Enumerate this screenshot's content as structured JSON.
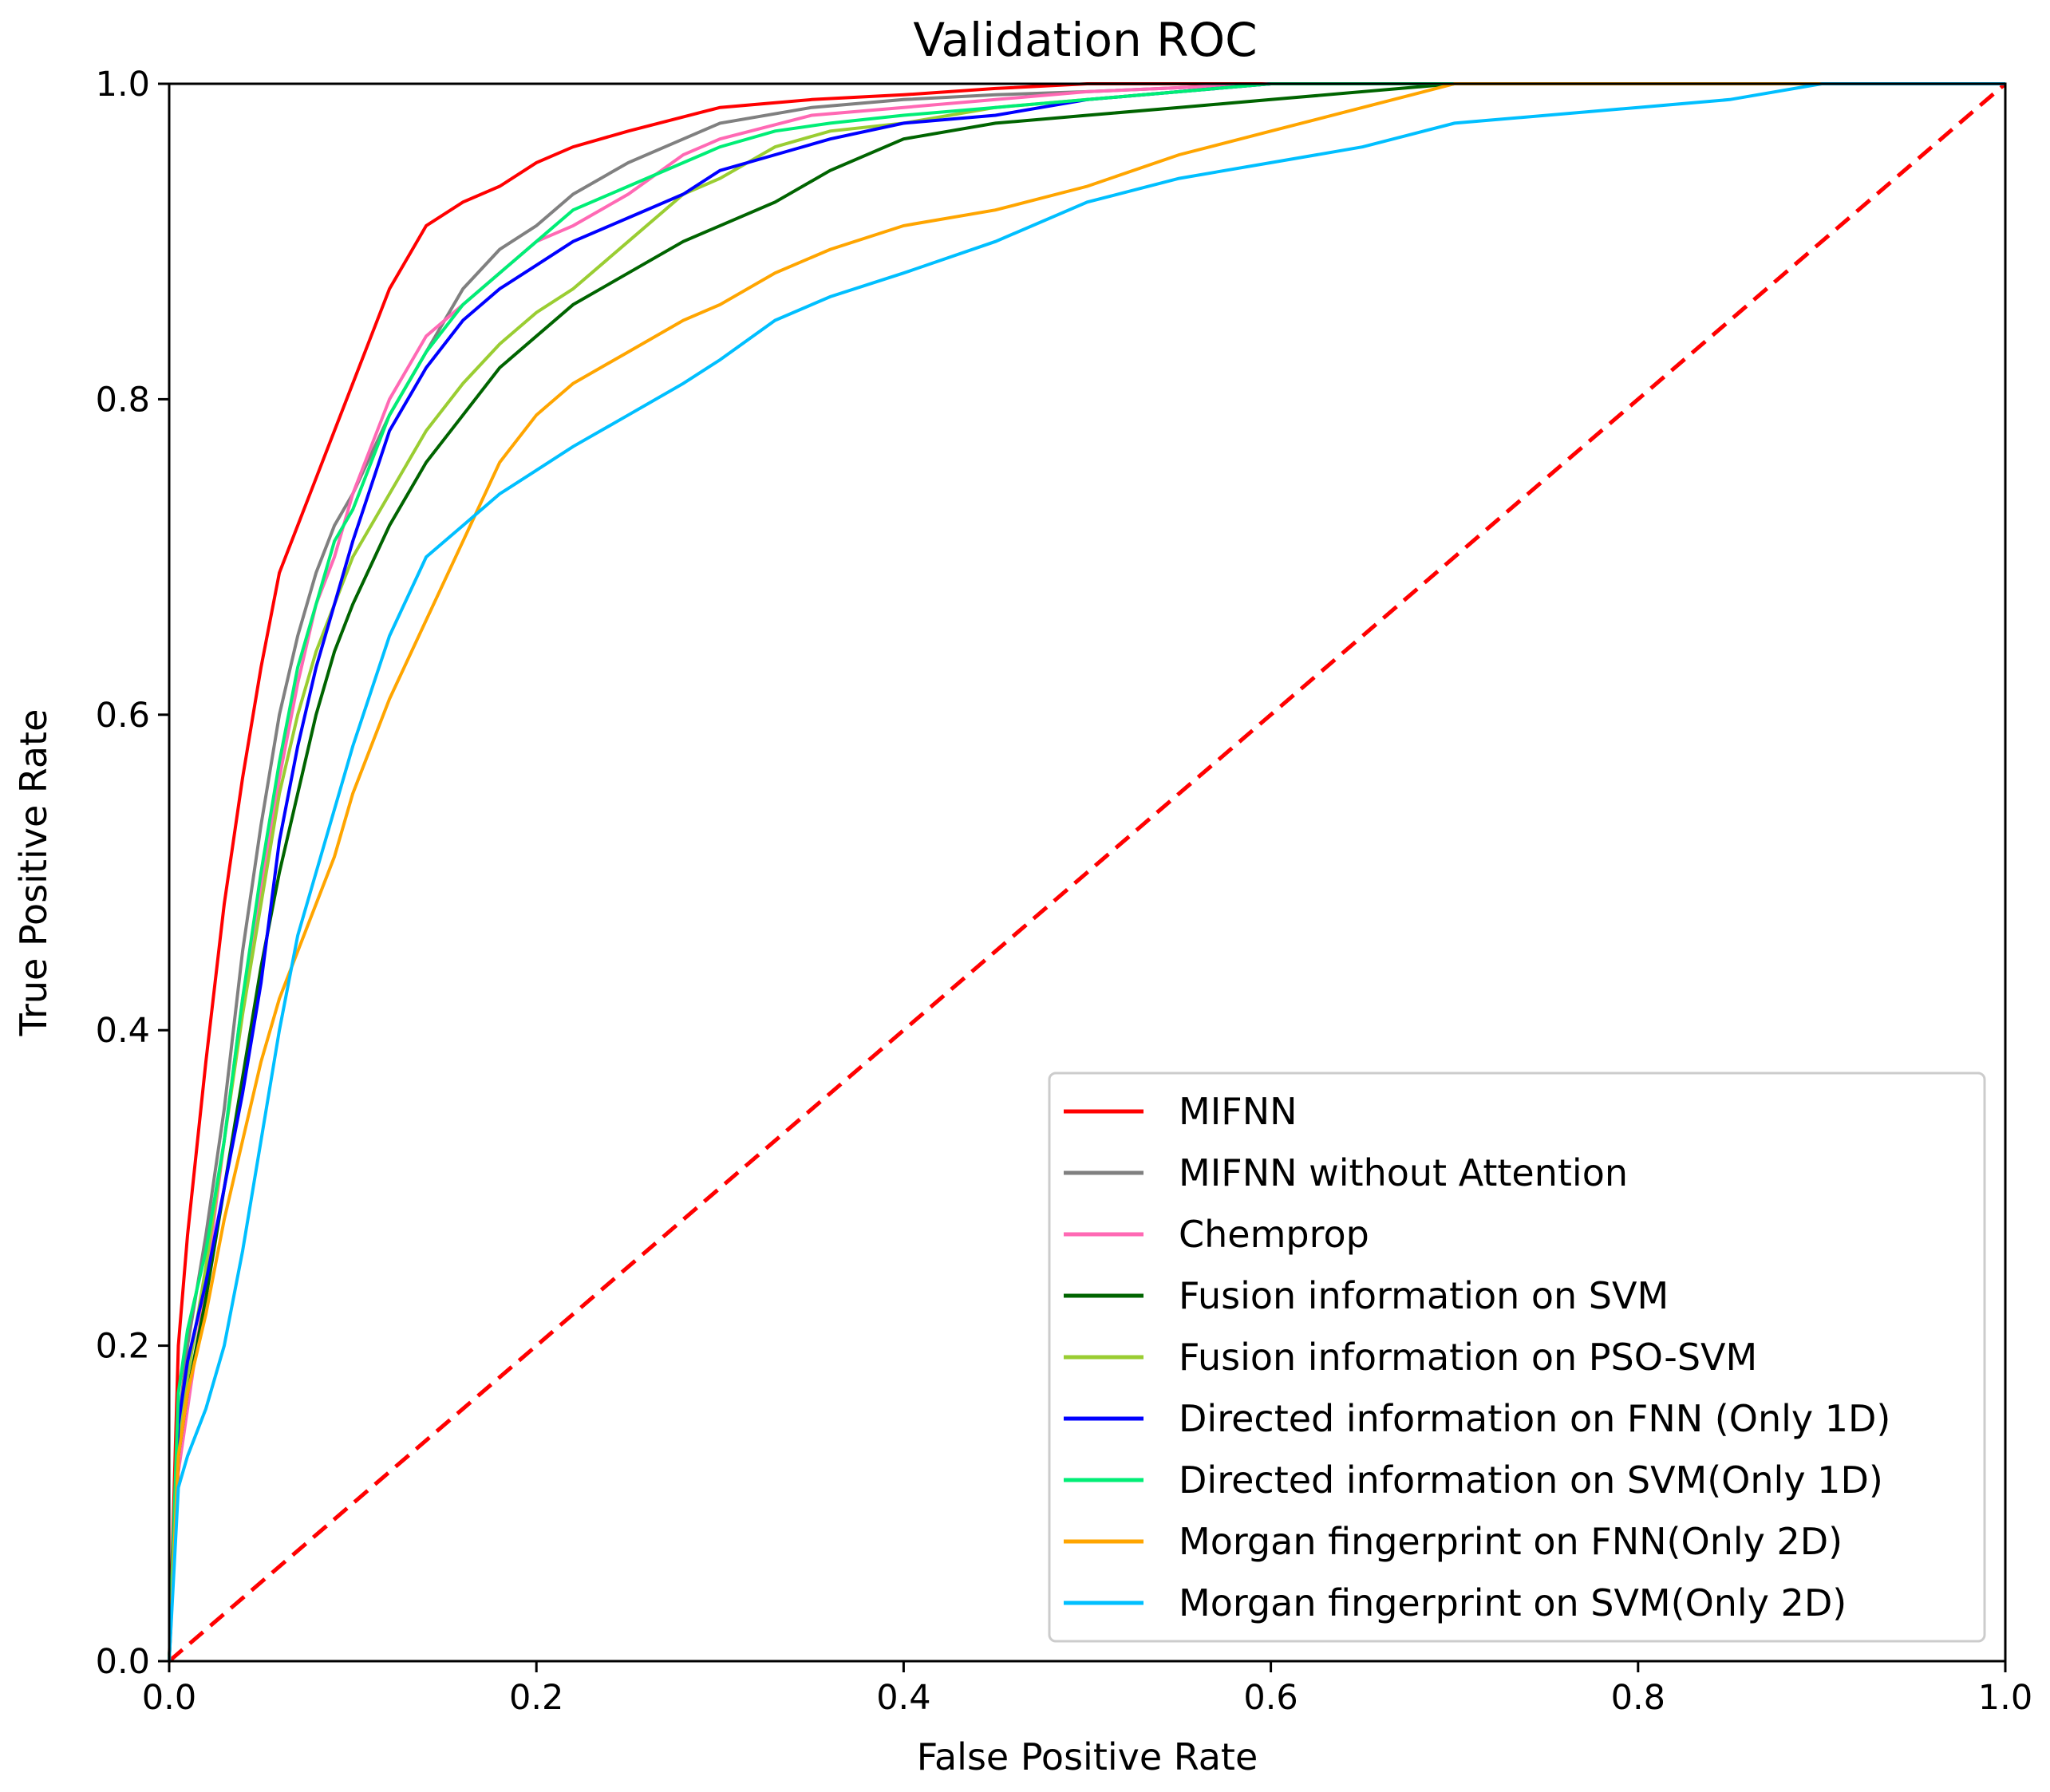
{
  "chart_data": {
    "type": "line",
    "title": "Validation ROC",
    "xlabel": "False Positive Rate",
    "ylabel": "True Positive Rate",
    "xlim": [
      0,
      1
    ],
    "ylim": [
      0,
      1
    ],
    "xticks": [
      "0.0",
      "0.2",
      "0.4",
      "0.6",
      "0.8",
      "1.0"
    ],
    "yticks": [
      "0.0",
      "0.2",
      "0.4",
      "0.6",
      "0.8",
      "1.0"
    ],
    "legend_position": "bottom-right",
    "grid": false,
    "series": [
      {
        "name": "MIFNN",
        "color": "#ff0000",
        "x": [
          0,
          0.005,
          0.01,
          0.02,
          0.03,
          0.04,
          0.05,
          0.06,
          0.07,
          0.08,
          0.09,
          0.1,
          0.11,
          0.12,
          0.13,
          0.14,
          0.16,
          0.18,
          0.2,
          0.22,
          0.25,
          0.3,
          0.35,
          0.4,
          0.45,
          0.5,
          0.6,
          0.7,
          0.8,
          0.9,
          1.0
        ],
        "y": [
          0,
          0.2,
          0.27,
          0.38,
          0.48,
          0.56,
          0.63,
          0.69,
          0.72,
          0.75,
          0.78,
          0.81,
          0.84,
          0.87,
          0.89,
          0.91,
          0.925,
          0.935,
          0.95,
          0.96,
          0.97,
          0.985,
          0.99,
          0.993,
          0.997,
          1.0,
          1.0,
          1.0,
          1.0,
          1.0,
          1.0
        ]
      },
      {
        "name": "MIFNN without Attention",
        "color": "#808080",
        "x": [
          0,
          0.005,
          0.01,
          0.02,
          0.03,
          0.04,
          0.05,
          0.06,
          0.07,
          0.08,
          0.09,
          0.1,
          0.12,
          0.14,
          0.16,
          0.18,
          0.2,
          0.22,
          0.25,
          0.28,
          0.3,
          0.35,
          0.4,
          0.45,
          0.5,
          0.6,
          0.7,
          0.8,
          0.9,
          1.0
        ],
        "y": [
          0,
          0.15,
          0.2,
          0.27,
          0.35,
          0.45,
          0.53,
          0.6,
          0.65,
          0.69,
          0.72,
          0.74,
          0.79,
          0.83,
          0.87,
          0.895,
          0.91,
          0.93,
          0.95,
          0.965,
          0.975,
          0.985,
          0.99,
          0.993,
          0.995,
          1.0,
          1.0,
          1.0,
          1.0,
          1.0
        ]
      },
      {
        "name": "Chemprop",
        "color": "#ff69b4",
        "x": [
          0,
          0.005,
          0.01,
          0.02,
          0.03,
          0.04,
          0.05,
          0.06,
          0.07,
          0.08,
          0.09,
          0.1,
          0.12,
          0.14,
          0.16,
          0.18,
          0.2,
          0.22,
          0.25,
          0.28,
          0.3,
          0.35,
          0.4,
          0.45,
          0.5,
          0.6,
          0.7,
          0.8,
          0.9,
          1.0
        ],
        "y": [
          0,
          0.12,
          0.16,
          0.24,
          0.33,
          0.42,
          0.49,
          0.56,
          0.62,
          0.67,
          0.7,
          0.74,
          0.8,
          0.84,
          0.86,
          0.88,
          0.9,
          0.91,
          0.93,
          0.955,
          0.965,
          0.98,
          0.985,
          0.99,
          0.995,
          1.0,
          1.0,
          1.0,
          1.0,
          1.0
        ]
      },
      {
        "name": "Fusion information on SVM",
        "color": "#006400",
        "x": [
          0,
          0.005,
          0.01,
          0.02,
          0.03,
          0.04,
          0.05,
          0.06,
          0.07,
          0.08,
          0.09,
          0.1,
          0.12,
          0.14,
          0.16,
          0.18,
          0.2,
          0.22,
          0.25,
          0.28,
          0.3,
          0.33,
          0.36,
          0.4,
          0.45,
          0.5,
          0.55,
          0.6,
          0.7,
          0.8,
          0.9,
          1.0
        ],
        "y": [
          0,
          0.13,
          0.17,
          0.23,
          0.3,
          0.37,
          0.44,
          0.5,
          0.55,
          0.6,
          0.64,
          0.67,
          0.72,
          0.76,
          0.79,
          0.82,
          0.84,
          0.86,
          0.88,
          0.9,
          0.91,
          0.925,
          0.945,
          0.965,
          0.975,
          0.98,
          0.985,
          0.99,
          1.0,
          1.0,
          1.0,
          1.0
        ]
      },
      {
        "name": "Fusion information on PSO-SVM",
        "color": "#9acd32",
        "x": [
          0,
          0.005,
          0.01,
          0.02,
          0.03,
          0.04,
          0.05,
          0.06,
          0.07,
          0.08,
          0.09,
          0.1,
          0.12,
          0.14,
          0.16,
          0.18,
          0.2,
          0.22,
          0.25,
          0.28,
          0.3,
          0.33,
          0.36,
          0.4,
          0.45,
          0.5,
          0.6,
          0.7,
          0.8,
          0.9,
          1.0
        ],
        "y": [
          0,
          0.14,
          0.18,
          0.25,
          0.33,
          0.41,
          0.48,
          0.55,
          0.6,
          0.64,
          0.67,
          0.7,
          0.74,
          0.78,
          0.81,
          0.835,
          0.855,
          0.87,
          0.9,
          0.93,
          0.94,
          0.96,
          0.97,
          0.975,
          0.985,
          0.99,
          1.0,
          1.0,
          1.0,
          1.0,
          1.0
        ]
      },
      {
        "name": "Directed information on FNN (Only 1D)",
        "color": "#0000ff",
        "x": [
          0,
          0.005,
          0.01,
          0.02,
          0.03,
          0.04,
          0.05,
          0.06,
          0.07,
          0.08,
          0.09,
          0.1,
          0.12,
          0.14,
          0.16,
          0.18,
          0.2,
          0.22,
          0.25,
          0.28,
          0.3,
          0.33,
          0.36,
          0.4,
          0.45,
          0.5,
          0.6,
          0.7,
          0.8,
          0.9,
          1.0
        ],
        "y": [
          0,
          0.15,
          0.19,
          0.24,
          0.3,
          0.36,
          0.43,
          0.52,
          0.58,
          0.63,
          0.67,
          0.71,
          0.78,
          0.82,
          0.85,
          0.87,
          0.885,
          0.9,
          0.915,
          0.93,
          0.945,
          0.955,
          0.965,
          0.975,
          0.98,
          0.99,
          1.0,
          1.0,
          1.0,
          1.0,
          1.0
        ]
      },
      {
        "name": "Directed information on SVM(Only 1D)",
        "color": "#00ee76",
        "x": [
          0,
          0.005,
          0.01,
          0.02,
          0.03,
          0.04,
          0.05,
          0.06,
          0.07,
          0.08,
          0.09,
          0.1,
          0.12,
          0.14,
          0.16,
          0.18,
          0.2,
          0.22,
          0.25,
          0.28,
          0.3,
          0.33,
          0.36,
          0.4,
          0.45,
          0.5,
          0.6,
          0.7,
          0.8,
          0.9,
          1.0
        ],
        "y": [
          0,
          0.17,
          0.21,
          0.26,
          0.33,
          0.42,
          0.5,
          0.57,
          0.63,
          0.67,
          0.71,
          0.73,
          0.79,
          0.83,
          0.86,
          0.88,
          0.9,
          0.92,
          0.935,
          0.95,
          0.96,
          0.97,
          0.975,
          0.98,
          0.985,
          0.99,
          1.0,
          1.0,
          1.0,
          1.0,
          1.0
        ]
      },
      {
        "name": "Morgan fingerprint on FNN(Only 2D)",
        "color": "#ffa500",
        "x": [
          0,
          0.005,
          0.01,
          0.02,
          0.03,
          0.04,
          0.05,
          0.06,
          0.07,
          0.08,
          0.09,
          0.1,
          0.12,
          0.14,
          0.16,
          0.18,
          0.2,
          0.22,
          0.25,
          0.28,
          0.3,
          0.33,
          0.36,
          0.4,
          0.45,
          0.5,
          0.55,
          0.6,
          0.65,
          0.7,
          0.8,
          0.9,
          1.0
        ],
        "y": [
          0,
          0.13,
          0.17,
          0.22,
          0.28,
          0.33,
          0.38,
          0.42,
          0.45,
          0.48,
          0.51,
          0.55,
          0.61,
          0.66,
          0.71,
          0.76,
          0.79,
          0.81,
          0.83,
          0.85,
          0.86,
          0.88,
          0.895,
          0.91,
          0.92,
          0.935,
          0.955,
          0.97,
          0.985,
          1.0,
          1.0,
          1.0,
          1.0
        ]
      },
      {
        "name": "Morgan fingerprint on SVM(Only 2D)",
        "color": "#00bfff",
        "x": [
          0,
          0.005,
          0.01,
          0.02,
          0.03,
          0.04,
          0.05,
          0.06,
          0.07,
          0.08,
          0.09,
          0.1,
          0.12,
          0.14,
          0.16,
          0.18,
          0.2,
          0.22,
          0.25,
          0.28,
          0.3,
          0.33,
          0.36,
          0.4,
          0.45,
          0.5,
          0.55,
          0.6,
          0.65,
          0.7,
          0.8,
          0.85,
          0.9,
          1.0
        ],
        "y": [
          0,
          0.11,
          0.13,
          0.16,
          0.2,
          0.26,
          0.33,
          0.4,
          0.46,
          0.5,
          0.54,
          0.58,
          0.65,
          0.7,
          0.72,
          0.74,
          0.755,
          0.77,
          0.79,
          0.81,
          0.825,
          0.85,
          0.865,
          0.88,
          0.9,
          0.925,
          0.94,
          0.95,
          0.96,
          0.975,
          0.985,
          0.99,
          1.0,
          1.0
        ]
      },
      {
        "name": "",
        "color": "#ff0000",
        "dashed": true,
        "in_legend": false,
        "x": [
          0,
          1
        ],
        "y": [
          0,
          1
        ]
      }
    ]
  }
}
